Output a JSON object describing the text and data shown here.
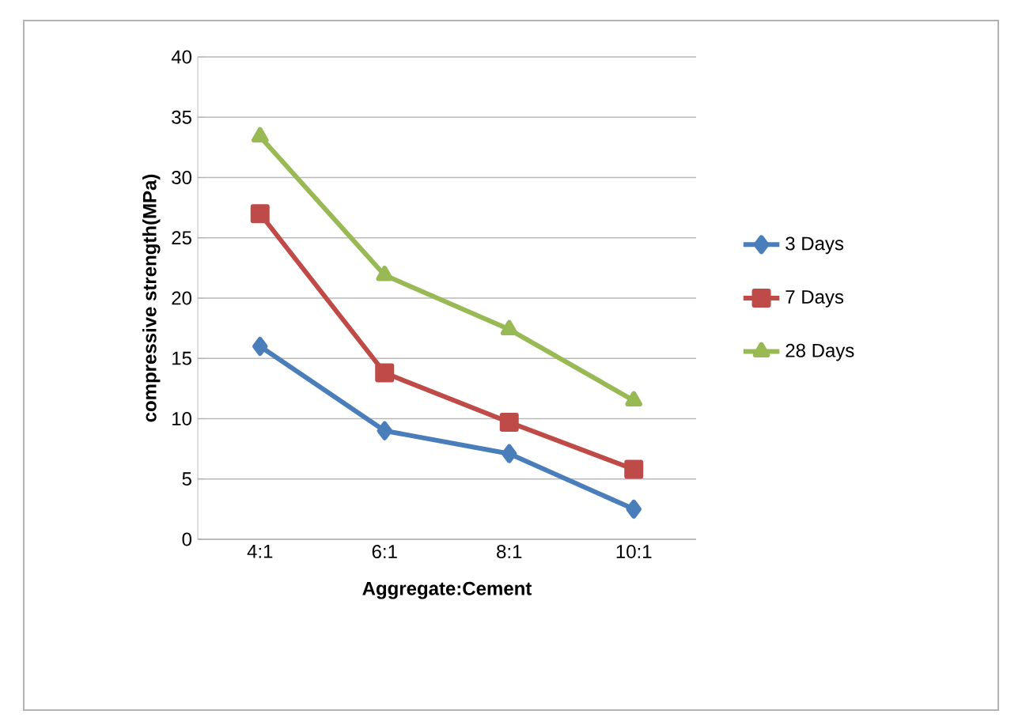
{
  "chart_data": {
    "type": "line",
    "xlabel": "Aggregate:Cement",
    "ylabel": "compressive strength(MPa)",
    "categories": [
      "4:1",
      "6:1",
      "8:1",
      "10:1"
    ],
    "series": [
      {
        "name": "3 Days",
        "color": "#4a7ebb",
        "marker": "diamond",
        "values": [
          16,
          9,
          7.1,
          2.5
        ]
      },
      {
        "name": "7 Days",
        "color": "#be4b48",
        "marker": "square",
        "values": [
          27,
          13.8,
          9.7,
          5.8
        ]
      },
      {
        "name": "28 Days",
        "color": "#98b954",
        "marker": "triangle",
        "values": [
          33.4,
          21.9,
          17.4,
          11.5
        ]
      }
    ],
    "ylim": [
      0,
      40
    ],
    "yticks": [
      0,
      5,
      10,
      15,
      20,
      25,
      30,
      35,
      40
    ],
    "grid": "y",
    "legend": "right",
    "line_style": "solid"
  }
}
